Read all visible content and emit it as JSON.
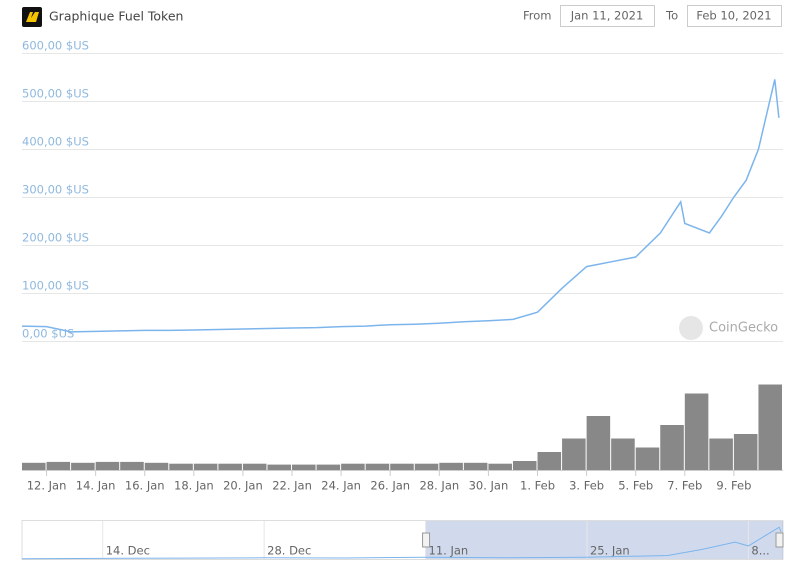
{
  "controls": {
    "from_label": "From",
    "from": "Jan 11, 2021",
    "to_label": "To",
    "to": "Feb 10, 2021"
  },
  "chart_data": {
    "type": "line",
    "title": "Graphique Fuel Token",
    "watermark": "CoinGecko",
    "color": "#7cb5ec",
    "x": [
      "2021-01-11",
      "2021-01-12",
      "2021-01-13",
      "2021-01-14",
      "2021-01-15",
      "2021-01-16",
      "2021-01-17",
      "2021-01-18",
      "2021-01-19",
      "2021-01-20",
      "2021-01-21",
      "2021-01-22",
      "2021-01-23",
      "2021-01-24",
      "2021-01-25",
      "2021-01-26",
      "2021-01-27",
      "2021-01-28",
      "2021-01-29",
      "2021-01-30",
      "2021-01-31",
      "2021-02-01",
      "2021-02-02",
      "2021-02-03",
      "2021-02-04",
      "2021-02-05",
      "2021-02-06",
      "2021-02-06T20:00:00Z",
      "2021-02-07",
      "2021-02-08",
      "2021-02-08T12:00:00Z",
      "2021-02-09",
      "2021-02-09T12:00:00Z",
      "2021-02-10",
      "2021-02-10T16:00:00Z",
      "2021-02-10T20:00:00Z"
    ],
    "values": [
      31,
      30,
      19,
      20,
      21,
      22,
      22,
      23,
      24,
      25,
      26,
      27,
      28,
      30,
      31,
      34,
      35,
      37,
      40,
      42,
      45,
      60,
      110,
      155,
      165,
      175,
      225,
      290,
      245,
      225,
      260,
      300,
      335,
      400,
      545,
      465
    ],
    "xlim": [
      "2021-01-11",
      "2021-02-11"
    ],
    "xticks": [
      {
        "value": "2021-01-12",
        "label": "12. Jan"
      },
      {
        "value": "2021-01-14",
        "label": "14. Jan"
      },
      {
        "value": "2021-01-16",
        "label": "16. Jan"
      },
      {
        "value": "2021-01-18",
        "label": "18. Jan"
      },
      {
        "value": "2021-01-20",
        "label": "20. Jan"
      },
      {
        "value": "2021-01-22",
        "label": "22. Jan"
      },
      {
        "value": "2021-01-24",
        "label": "24. Jan"
      },
      {
        "value": "2021-01-26",
        "label": "26. Jan"
      },
      {
        "value": "2021-01-28",
        "label": "28. Jan"
      },
      {
        "value": "2021-01-30",
        "label": "30. Jan"
      },
      {
        "value": "2021-02-01",
        "label": "1. Feb"
      },
      {
        "value": "2021-02-03",
        "label": "3. Feb"
      },
      {
        "value": "2021-02-05",
        "label": "5. Feb"
      },
      {
        "value": "2021-02-07",
        "label": "7. Feb"
      },
      {
        "value": "2021-02-09",
        "label": "9. Feb"
      }
    ],
    "ylim": [
      0,
      600
    ],
    "yticks": [
      {
        "value": 0,
        "label": "0,00 $US"
      },
      {
        "value": 100,
        "label": "100,00 $US"
      },
      {
        "value": 200,
        "label": "200,00 $US"
      },
      {
        "value": 300,
        "label": "300,00 $US"
      },
      {
        "value": 400,
        "label": "400,00 $US"
      },
      {
        "value": 500,
        "label": "500,00 $US"
      },
      {
        "value": 600,
        "label": "600,00 $US"
      }
    ],
    "grid": true,
    "volume": {
      "color": "#888888",
      "ylim": [
        0,
        100
      ],
      "x": [
        "2021-01-11",
        "2021-01-12",
        "2021-01-13",
        "2021-01-14",
        "2021-01-15",
        "2021-01-16",
        "2021-01-17",
        "2021-01-18",
        "2021-01-19",
        "2021-01-20",
        "2021-01-21",
        "2021-01-22",
        "2021-01-23",
        "2021-01-24",
        "2021-01-25",
        "2021-01-26",
        "2021-01-27",
        "2021-01-28",
        "2021-01-29",
        "2021-01-30",
        "2021-01-31",
        "2021-02-01",
        "2021-02-02",
        "2021-02-03",
        "2021-02-04",
        "2021-02-05",
        "2021-02-06",
        "2021-02-07",
        "2021-02-08",
        "2021-02-09",
        "2021-02-10"
      ],
      "values": [
        8,
        9,
        8,
        9,
        9,
        8,
        7,
        7,
        7,
        7,
        6,
        6,
        6,
        7,
        7,
        7,
        7,
        8,
        8,
        7,
        10,
        20,
        35,
        60,
        35,
        25,
        50,
        85,
        35,
        40,
        95
      ]
    },
    "navigator": {
      "color": "#7cb5ec",
      "xlim": [
        "2020-12-07",
        "2021-02-11"
      ],
      "ylim": [
        0,
        600
      ],
      "x": [
        "2020-12-07",
        "2020-12-14",
        "2020-12-21",
        "2020-12-28",
        "2021-01-04",
        "2021-01-11",
        "2021-01-18",
        "2021-01-25",
        "2021-02-01",
        "2021-02-04",
        "2021-02-06T20:00:00Z",
        "2021-02-08",
        "2021-02-10T16:00:00Z",
        "2021-02-10T20:00:00Z"
      ],
      "values": [
        5,
        10,
        15,
        20,
        18,
        31,
        23,
        31,
        60,
        165,
        290,
        225,
        545,
        465
      ],
      "xticks": [
        {
          "value": "2020-12-14",
          "label": "14. Dec"
        },
        {
          "value": "2020-12-28",
          "label": "28. Dec"
        },
        {
          "value": "2021-01-11",
          "label": "11. Jan"
        },
        {
          "value": "2021-01-25",
          "label": "25. Jan"
        },
        {
          "value": "2021-02-08",
          "label": "8..."
        }
      ]
    }
  }
}
